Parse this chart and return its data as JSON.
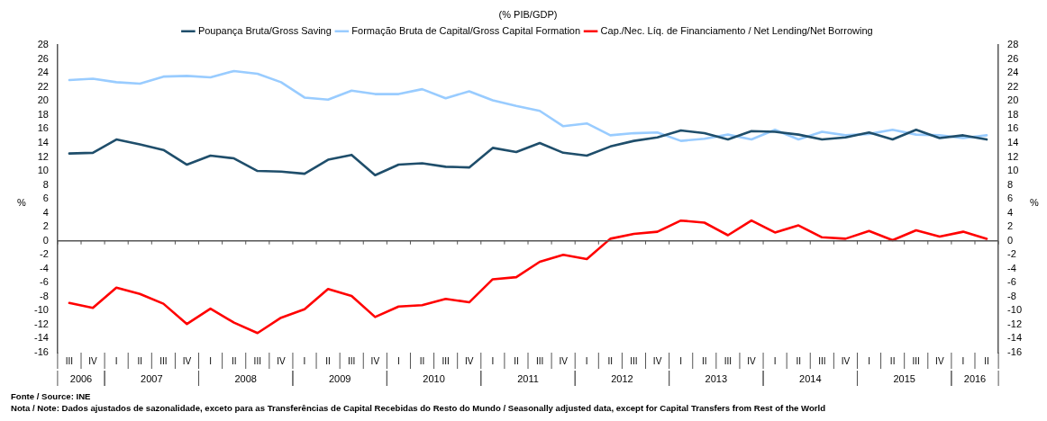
{
  "chart_data": {
    "type": "line",
    "title": "(% PIB/GDP)",
    "categories": [
      "III",
      "IV",
      "I",
      "II",
      "III",
      "IV",
      "I",
      "II",
      "III",
      "IV",
      "I",
      "II",
      "III",
      "IV",
      "I",
      "II",
      "III",
      "IV",
      "I",
      "II",
      "III",
      "IV",
      "I",
      "II",
      "III",
      "IV",
      "I",
      "II",
      "III",
      "IV",
      "I",
      "II",
      "III",
      "IV",
      "I",
      "II",
      "III",
      "IV",
      "I",
      "II"
    ],
    "series": [
      {
        "name": "Poupança Bruta/Gross Saving",
        "color": "#1f4e6b",
        "values": [
          12.5,
          12.6,
          14.5,
          13.8,
          13.0,
          10.9,
          12.2,
          11.8,
          10.0,
          9.9,
          9.6,
          11.6,
          12.3,
          9.4,
          10.9,
          11.1,
          10.6,
          10.5,
          13.3,
          12.7,
          14.0,
          12.6,
          12.2,
          13.5,
          14.3,
          14.8,
          15.8,
          15.4,
          14.5,
          15.7,
          15.6,
          15.2,
          14.5,
          14.8,
          15.5,
          14.5,
          15.9,
          14.7,
          15.1,
          14.5
        ]
      },
      {
        "name": "Formação Bruta de Capital/Gross Capital Formation",
        "color": "#99ccff",
        "values": [
          23.0,
          23.2,
          22.7,
          22.5,
          23.5,
          23.6,
          23.4,
          24.3,
          23.9,
          22.7,
          20.5,
          20.2,
          21.5,
          21.0,
          21.0,
          21.7,
          20.4,
          21.4,
          20.1,
          19.3,
          18.6,
          16.4,
          16.8,
          15.1,
          15.4,
          15.5,
          14.3,
          14.6,
          15.2,
          14.5,
          15.9,
          14.5,
          15.6,
          15.1,
          15.3,
          15.9,
          15.2,
          15.1,
          14.7,
          15.1
        ]
      },
      {
        "name": "Cap./Nec. Líq. de Financiamento / Net Lending/Net Borrowing",
        "color": "#ff0000",
        "values": [
          -8.9,
          -9.6,
          -6.7,
          -7.6,
          -9.0,
          -11.9,
          -9.7,
          -11.7,
          -13.2,
          -11.0,
          -9.8,
          -6.9,
          -7.9,
          -10.9,
          -9.4,
          -9.2,
          -8.3,
          -8.8,
          -5.5,
          -5.2,
          -3.0,
          -2.0,
          -2.6,
          0.3,
          1.0,
          1.3,
          2.9,
          2.6,
          0.8,
          2.9,
          1.2,
          2.2,
          0.5,
          0.3,
          1.4,
          0.1,
          1.5,
          0.6,
          1.3,
          0.3
        ]
      }
    ],
    "ylabel": "%",
    "y2label": "%",
    "ylim": [
      -16,
      28
    ],
    "yticks": [
      -16,
      -14,
      -12,
      -10,
      -8,
      -6,
      -4,
      -2,
      0,
      2,
      4,
      6,
      8,
      10,
      12,
      14,
      16,
      18,
      20,
      22,
      24,
      26,
      28
    ],
    "y2lim": [
      -16,
      28
    ],
    "y2ticks": [
      -16,
      -14,
      -12,
      -10,
      -8,
      -6,
      -4,
      -2,
      0,
      2,
      4,
      6,
      8,
      10,
      12,
      14,
      16,
      18,
      20,
      22,
      24,
      26,
      28
    ],
    "legend": "top",
    "marker": "none",
    "line_style": "solid",
    "annotations": [
      "2006",
      "2007",
      "2008",
      "2009",
      "2010",
      "2011",
      "2012",
      "2013",
      "2014",
      "2015",
      "2016",
      "Fonte / Source:  INE",
      "Nota / Note: Dados ajustados de sazonalidade, exceto para as Transferências de Capital Recebidas do Resto do Mundo / Seasonally adjusted data, except for Capital Transfers from Rest of the World"
    ]
  }
}
